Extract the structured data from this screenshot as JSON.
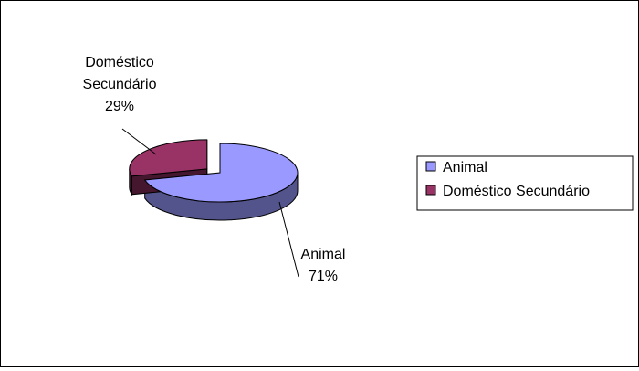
{
  "chart_data": {
    "type": "pie",
    "style": "3d-exploded",
    "categories": [
      "Animal",
      "Doméstico Secundário"
    ],
    "values": [
      71,
      29
    ],
    "unit": "%",
    "colors": {
      "Animal": "#9999ff",
      "Doméstico Secundário": "#993366"
    },
    "data_labels": [
      {
        "lines": [
          "Animal"
        ],
        "value_text": "71%"
      },
      {
        "lines": [
          "Doméstico",
          "Secundário"
        ],
        "value_text": "29%"
      }
    ],
    "legend": {
      "position": "right",
      "items": [
        "Animal",
        "Doméstico Secundário"
      ]
    }
  }
}
